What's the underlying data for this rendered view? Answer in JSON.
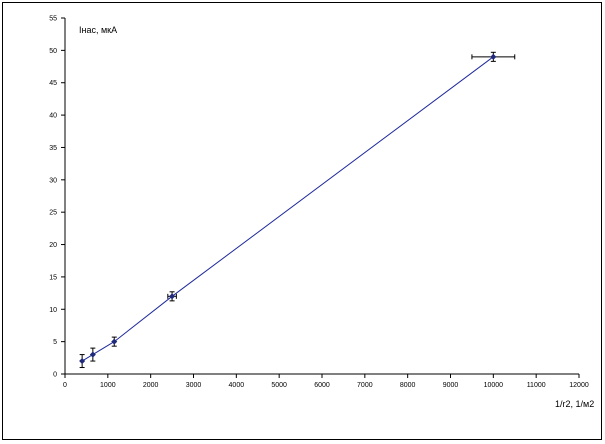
{
  "chart_data": {
    "type": "scatter",
    "title": "",
    "ylabel": "Iнас, мкА",
    "xlabel": "1/r2, 1/м2",
    "xlim": [
      0,
      12000
    ],
    "ylim": [
      0,
      55
    ],
    "x_ticks": [
      0,
      1000,
      2000,
      3000,
      4000,
      5000,
      6000,
      7000,
      8000,
      9000,
      10000,
      11000,
      12000
    ],
    "y_ticks": [
      0,
      5,
      10,
      15,
      20,
      25,
      30,
      35,
      40,
      45,
      50,
      55
    ],
    "grid": false,
    "legend": "none",
    "series": [
      {
        "line_color": "#1f2a9c",
        "marker_color": "#1f2a7a",
        "points": [
          {
            "x": 400,
            "y": 2,
            "y_err": 1,
            "x_err": 0
          },
          {
            "x": 650,
            "y": 3,
            "y_err": 1,
            "x_err": 0
          },
          {
            "x": 1150,
            "y": 5,
            "y_err": 0.7,
            "x_err": 0
          },
          {
            "x": 2500,
            "y": 12,
            "y_err": 0.7,
            "x_err": 100
          },
          {
            "x": 10000,
            "y": 49,
            "y_err": 0.7,
            "x_err": 500
          }
        ]
      }
    ]
  }
}
